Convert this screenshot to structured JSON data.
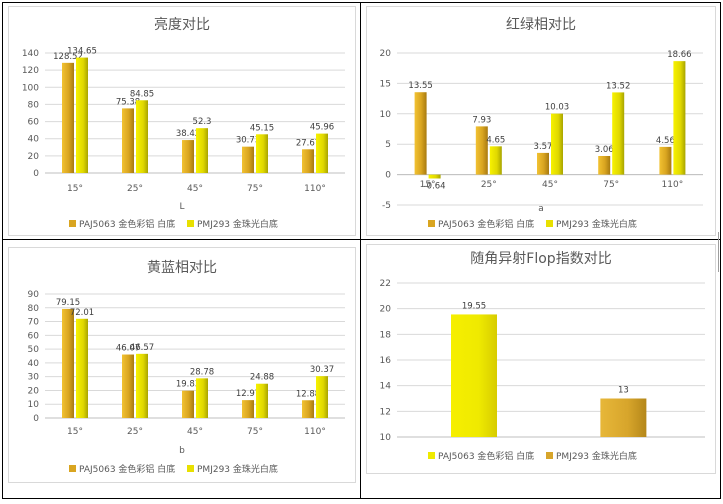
{
  "colors": {
    "series1": "#d9a520",
    "series2": "#e8e000",
    "grid": "#d9d9d9",
    "text": "#595959"
  },
  "chart_data": [
    {
      "type": "bar",
      "title": "亮度对比",
      "xlabel": "L",
      "categories": [
        "15°",
        "25°",
        "45°",
        "75°",
        "110°"
      ],
      "series": [
        {
          "name": "PAJ5063 金色彩铝 白底",
          "values": [
            128.52,
            75.38,
            38.42,
            30.73,
            27.67
          ]
        },
        {
          "name": "PMJ293 金珠光白底",
          "values": [
            134.65,
            84.85,
            52.3,
            45.15,
            45.96
          ]
        }
      ],
      "ylim": [
        0,
        140
      ],
      "yticks": [
        0,
        20,
        40,
        60,
        80,
        100,
        120,
        140
      ],
      "grid": true,
      "legend": "bottom"
    },
    {
      "type": "bar",
      "title": "红绿相对比",
      "xlabel": "a",
      "categories": [
        "15°",
        "25°",
        "45°",
        "75°",
        "110°"
      ],
      "series": [
        {
          "name": "PAJ5063 金色彩铝 白底",
          "values": [
            13.55,
            7.93,
            3.57,
            3.06,
            4.56
          ]
        },
        {
          "name": "PMJ293 金珠光白底",
          "values": [
            -0.64,
            4.65,
            10.03,
            13.52,
            18.66
          ]
        }
      ],
      "ylim": [
        -5,
        20
      ],
      "yticks": [
        -5,
        0,
        5,
        10,
        15,
        20
      ],
      "grid": true,
      "legend": "bottom"
    },
    {
      "type": "bar",
      "title": "黄蓝相对比",
      "xlabel": "b",
      "categories": [
        "15°",
        "25°",
        "45°",
        "75°",
        "110°"
      ],
      "series": [
        {
          "name": "PAJ5063 金色彩铝 白底",
          "values": [
            79.15,
            46.07,
            19.83,
            12.97,
            12.88
          ]
        },
        {
          "name": "PMJ293 金珠光白底",
          "values": [
            72.01,
            46.57,
            28.78,
            24.88,
            30.37
          ]
        }
      ],
      "ylim": [
        0,
        90
      ],
      "yticks": [
        0,
        10,
        20,
        30,
        40,
        50,
        60,
        70,
        80,
        90
      ],
      "grid": true,
      "legend": "bottom"
    },
    {
      "type": "bar",
      "title": "随角异射Flop指数对比",
      "xlabel": "",
      "categories": [
        ""
      ],
      "series": [
        {
          "name": "PAJ5063 金色彩铝 白底",
          "values": [
            19.55
          ]
        },
        {
          "name": "PMJ293 金珠光白底",
          "values": [
            13
          ]
        }
      ],
      "ylim": [
        10,
        22
      ],
      "yticks": [
        10,
        12,
        14,
        16,
        18,
        20,
        22
      ],
      "grid": true,
      "legend": "bottom"
    }
  ]
}
